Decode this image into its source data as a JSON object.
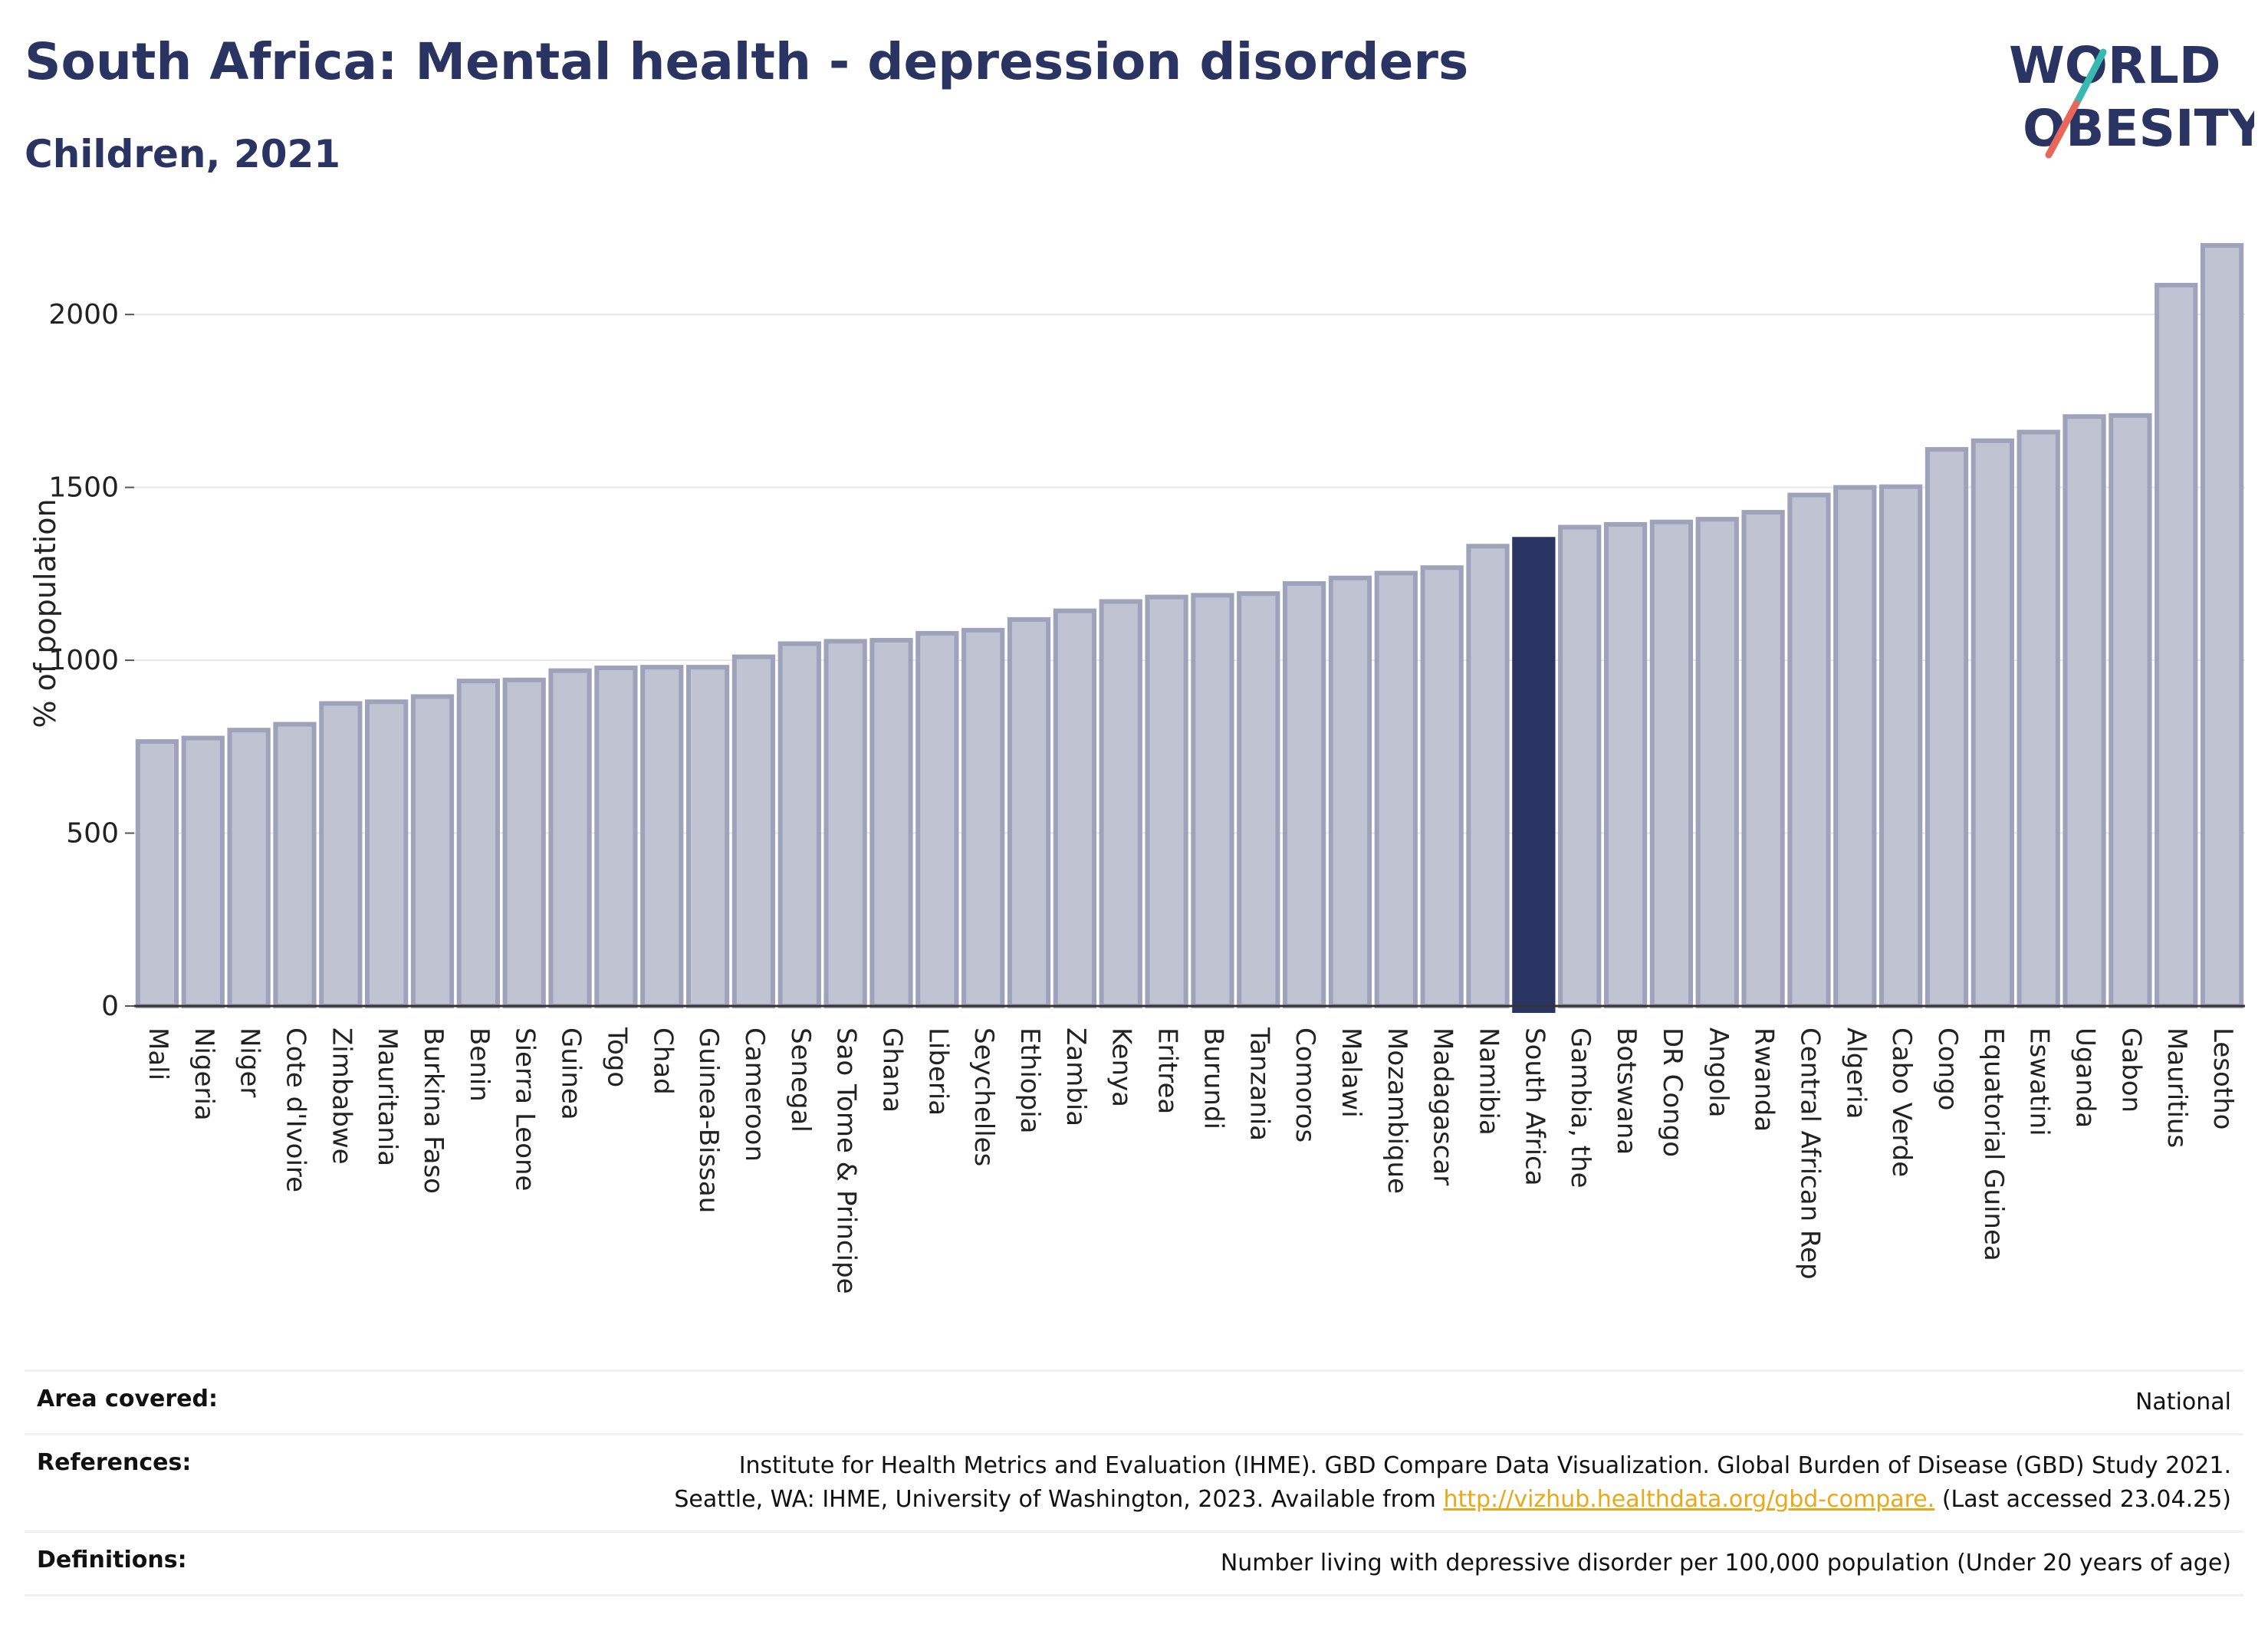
{
  "header": {
    "title": "South Africa: Mental health - depression disorders",
    "subtitle": "Children, 2021"
  },
  "logo": {
    "line1": "WORLD",
    "line2": "OBESITY",
    "colors": {
      "text": "#2a3462",
      "slash_top": "#38b9b0",
      "slash_bottom": "#e8675a"
    }
  },
  "chart_data": {
    "type": "bar",
    "title": "South Africa: Mental health - depression disorders",
    "subtitle": "Children, 2021",
    "ylabel": "% of population",
    "xlabel": "",
    "ylim": [
      0,
      2200
    ],
    "yticks": [
      0,
      500,
      1000,
      1500,
      2000
    ],
    "grid": true,
    "highlight": "South Africa",
    "colors": {
      "bar": "#c0c3d2",
      "bar_border": "#9ea3bb",
      "highlight": "#2a3462"
    },
    "categories": [
      "Mali",
      "Nigeria",
      "Niger",
      "Cote d'Ivoire",
      "Zimbabwe",
      "Mauritania",
      "Burkina Faso",
      "Benin",
      "Sierra Leone",
      "Guinea",
      "Togo",
      "Chad",
      "Guinea-Bissau",
      "Cameroon",
      "Senegal",
      "Sao Tome & Principe",
      "Ghana",
      "Liberia",
      "Seychelles",
      "Ethiopia",
      "Zambia",
      "Kenya",
      "Eritrea",
      "Burundi",
      "Tanzania",
      "Comoros",
      "Malawi",
      "Mozambique",
      "Madagascar",
      "Namibia",
      "South Africa",
      "Gambia, the",
      "Botswana",
      "DR Congo",
      "Angola",
      "Rwanda",
      "Central African Rep",
      "Algeria",
      "Cabo Verde",
      "Congo",
      "Equatorial Guinea",
      "Eswatini",
      "Uganda",
      "Gabon",
      "Mauritius",
      "Lesotho"
    ],
    "values": [
      765,
      775,
      798,
      815,
      875,
      880,
      895,
      940,
      943,
      970,
      978,
      980,
      980,
      1010,
      1048,
      1055,
      1058,
      1078,
      1087,
      1118,
      1143,
      1170,
      1183,
      1188,
      1193,
      1222,
      1238,
      1252,
      1268,
      1330,
      1350,
      1385,
      1393,
      1400,
      1408,
      1428,
      1478,
      1500,
      1502,
      1610,
      1635,
      1660,
      1705,
      1708,
      2085,
      2200
    ]
  },
  "footer": {
    "area_label": "Area covered:",
    "area_value": "National",
    "references_label": "References:",
    "references_line1": "Institute for Health Metrics and Evaluation (IHME). GBD Compare Data Visualization. Global Burden of Disease (GBD) Study 2021.",
    "references_line2_pre": "Seattle, WA: IHME, University of Washington, 2023. Available from ",
    "references_link": "http://vizhub.healthdata.org/gbd-compare.",
    "references_line2_post": " (Last accessed 23.04.25)",
    "definitions_label": "Definitions:",
    "definitions_value": "Number living with depressive disorder per 100,000 population (Under 20 years of age)"
  }
}
